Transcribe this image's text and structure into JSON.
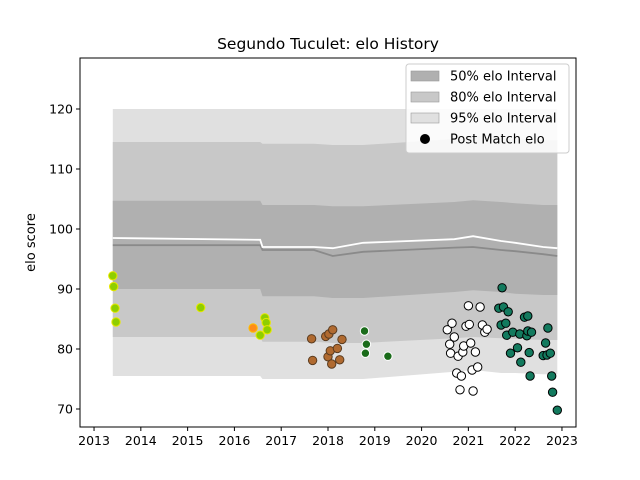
{
  "chart_data": {
    "type": "area",
    "title": "Segundo Tuculet: elo History",
    "xlabel": "",
    "ylabel": "elo score",
    "xlim": [
      2012.7,
      2023.3
    ],
    "ylim": [
      67,
      128.5
    ],
    "xticks": [
      2013,
      2014,
      2015,
      2016,
      2017,
      2018,
      2019,
      2020,
      2021,
      2022,
      2023
    ],
    "yticks": [
      70,
      80,
      90,
      100,
      110,
      120
    ],
    "legend_position": "top-right",
    "legend": [
      {
        "label": "50% elo Interval",
        "kind": "band",
        "color": "#b0b0b0"
      },
      {
        "label": "80% elo Interval",
        "kind": "band",
        "color": "#c8c8c8"
      },
      {
        "label": "95% elo Interval",
        "kind": "band",
        "color": "#e0e0e0"
      },
      {
        "label": "Post Match elo",
        "kind": "marker",
        "color": "#000000"
      }
    ],
    "bands": {
      "x": [
        2013.4,
        2016.55,
        2016.6,
        2017.7,
        2018.1,
        2018.75,
        2020.7,
        2021.1,
        2021.7,
        2022.0,
        2022.6,
        2022.9
      ],
      "p95_upper": [
        120.0,
        120.0,
        120.0,
        120.0,
        120.0,
        120.0,
        120.0,
        120.0,
        120.0,
        120.0,
        120.0,
        120.0
      ],
      "p95_lower": [
        75.5,
        75.5,
        75.0,
        75.0,
        75.0,
        75.0,
        76.2,
        76.5,
        76.0,
        76.0,
        75.8,
        75.8
      ],
      "p80_upper": [
        114.5,
        114.5,
        114.2,
        114.2,
        114.0,
        114.0,
        115.0,
        115.5,
        115.2,
        115.0,
        114.8,
        114.8
      ],
      "p80_lower": [
        82.0,
        82.0,
        81.2,
        81.2,
        81.0,
        81.0,
        81.8,
        82.0,
        81.8,
        81.7,
        81.5,
        81.5
      ],
      "p50_upper": [
        104.7,
        104.7,
        104.0,
        104.0,
        103.8,
        103.8,
        104.5,
        104.8,
        104.5,
        104.3,
        104.0,
        104.0
      ],
      "p50_lower": [
        90.0,
        90.0,
        88.8,
        88.8,
        88.5,
        88.5,
        89.5,
        89.8,
        89.5,
        89.2,
        89.0,
        89.0
      ],
      "median": [
        97.3,
        97.3,
        96.5,
        96.5,
        95.5,
        96.2,
        96.9,
        97.0,
        96.5,
        96.3,
        95.8,
        95.5
      ],
      "mean": [
        98.5,
        98.2,
        97.0,
        97.0,
        96.8,
        97.7,
        98.3,
        98.8,
        98.0,
        97.7,
        97.0,
        96.8
      ]
    },
    "series": [
      {
        "fill": "#8fce00",
        "stroke": "#e8e800",
        "points": [
          [
            2013.4,
            92.2
          ],
          [
            2013.42,
            90.4
          ],
          [
            2013.45,
            86.8
          ],
          [
            2013.47,
            84.5
          ],
          [
            2015.28,
            86.9
          ],
          [
            2016.55,
            82.3
          ],
          [
            2016.65,
            85.2
          ],
          [
            2016.68,
            84.4
          ],
          [
            2016.7,
            83.2
          ]
        ]
      },
      {
        "fill": "#ff8c1a",
        "stroke": "#ffc000",
        "points": [
          [
            2016.4,
            83.5
          ]
        ]
      },
      {
        "fill": "#b06a30",
        "stroke": "#5a3c20",
        "points": [
          [
            2017.65,
            81.7
          ],
          [
            2017.67,
            78.1
          ],
          [
            2017.95,
            82.1
          ],
          [
            2018.0,
            78.7
          ],
          [
            2018.02,
            82.5
          ],
          [
            2018.05,
            79.7
          ],
          [
            2018.08,
            77.5
          ],
          [
            2018.1,
            83.2
          ],
          [
            2018.2,
            80.1
          ],
          [
            2018.25,
            78.2
          ],
          [
            2018.3,
            81.6
          ]
        ]
      },
      {
        "fill": "#1a6b1a",
        "stroke": "#ffffff",
        "points": [
          [
            2018.78,
            83.0
          ],
          [
            2018.8,
            79.3
          ],
          [
            2018.82,
            80.8
          ],
          [
            2019.28,
            78.8
          ]
        ]
      },
      {
        "fill": "#ffffff",
        "stroke": "#000000",
        "points": [
          [
            2020.55,
            83.2
          ],
          [
            2020.6,
            80.8
          ],
          [
            2020.62,
            79.3
          ],
          [
            2020.65,
            84.3
          ],
          [
            2020.7,
            82.0
          ],
          [
            2020.75,
            76.0
          ],
          [
            2020.78,
            78.8
          ],
          [
            2020.82,
            73.2
          ],
          [
            2020.85,
            75.5
          ],
          [
            2020.88,
            79.5
          ],
          [
            2020.9,
            80.5
          ],
          [
            2020.95,
            83.8
          ],
          [
            2021.0,
            87.2
          ],
          [
            2021.02,
            84.1
          ],
          [
            2021.05,
            81.0
          ],
          [
            2021.08,
            76.5
          ],
          [
            2021.1,
            73.0
          ],
          [
            2021.15,
            79.5
          ],
          [
            2021.2,
            77.0
          ],
          [
            2021.25,
            87.0
          ],
          [
            2021.3,
            84.0
          ],
          [
            2021.35,
            82.8
          ],
          [
            2021.4,
            83.3
          ]
        ]
      },
      {
        "fill": "#137a5e",
        "stroke": "#000000",
        "points": [
          [
            2021.65,
            86.8
          ],
          [
            2021.7,
            84.0
          ],
          [
            2021.72,
            90.2
          ],
          [
            2021.75,
            87.0
          ],
          [
            2021.8,
            84.3
          ],
          [
            2021.82,
            82.3
          ],
          [
            2021.85,
            86.2
          ],
          [
            2021.9,
            79.3
          ],
          [
            2021.95,
            82.8
          ],
          [
            2022.05,
            80.2
          ],
          [
            2022.1,
            82.5
          ],
          [
            2022.12,
            77.8
          ],
          [
            2022.2,
            85.3
          ],
          [
            2022.25,
            82.2
          ],
          [
            2022.27,
            83.0
          ],
          [
            2022.3,
            79.4
          ],
          [
            2022.32,
            75.5
          ],
          [
            2022.27,
            85.5
          ],
          [
            2022.35,
            82.8
          ],
          [
            2022.6,
            78.9
          ],
          [
            2022.65,
            81.0
          ],
          [
            2022.68,
            79.0
          ],
          [
            2022.7,
            83.5
          ],
          [
            2022.75,
            79.3
          ],
          [
            2022.78,
            75.5
          ],
          [
            2022.8,
            72.8
          ],
          [
            2022.9,
            69.8
          ]
        ]
      }
    ]
  }
}
